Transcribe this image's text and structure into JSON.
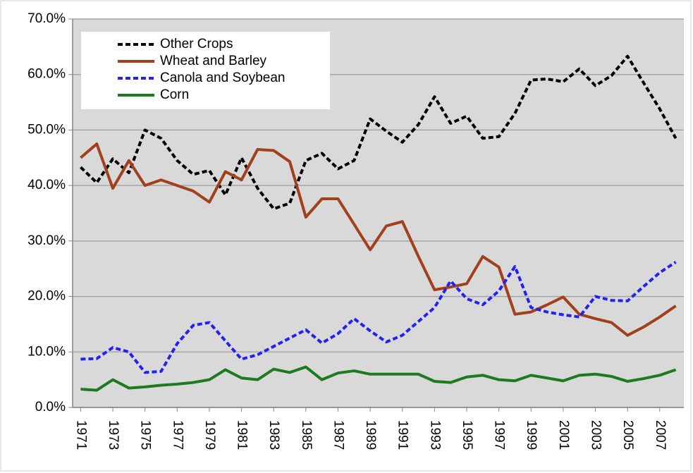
{
  "chart_data": {
    "type": "line",
    "x": [
      1971,
      1972,
      1973,
      1974,
      1975,
      1976,
      1977,
      1978,
      1979,
      1980,
      1981,
      1982,
      1983,
      1984,
      1985,
      1986,
      1987,
      1988,
      1989,
      1990,
      1991,
      1992,
      1993,
      1994,
      1995,
      1996,
      1997,
      1998,
      1999,
      2000,
      2001,
      2002,
      2003,
      2004,
      2005,
      2006,
      2007,
      2008
    ],
    "xlim": [
      1970.5,
      2008.5
    ],
    "xticks": [
      1971,
      1973,
      1975,
      1977,
      1979,
      1981,
      1983,
      1985,
      1987,
      1989,
      1991,
      1993,
      1995,
      1997,
      1999,
      2001,
      2003,
      2005,
      2007
    ],
    "ylim": [
      0,
      70
    ],
    "yticks": [
      {
        "value": 0,
        "label": "0.0%"
      },
      {
        "value": 10,
        "label": "10.0%"
      },
      {
        "value": 20,
        "label": "20.0%"
      },
      {
        "value": 30,
        "label": "30.0%"
      },
      {
        "value": 40,
        "label": "40.0%"
      },
      {
        "value": 50,
        "label": "50.0%"
      },
      {
        "value": 60,
        "label": "60.0%"
      },
      {
        "value": 70,
        "label": "70.0%"
      }
    ],
    "grid": true,
    "legend": "upper left",
    "series": [
      {
        "name": "Other Crops",
        "color": "#000000",
        "dashed": true,
        "values": [
          43.3,
          40.5,
          44.8,
          42.3,
          50.0,
          48.5,
          44.5,
          42.0,
          42.7,
          38.3,
          45.0,
          39.5,
          35.8,
          36.8,
          44.5,
          45.8,
          43.0,
          44.5,
          52.0,
          49.8,
          47.8,
          51.0,
          56.0,
          51.2,
          52.5,
          48.5,
          48.8,
          53.0,
          59.0,
          59.2,
          58.7,
          61.0,
          58.0,
          59.8,
          63.3,
          58.5,
          53.8,
          48.5
        ]
      },
      {
        "name": "Wheat and Barley",
        "color": "#a2401c",
        "dashed": false,
        "values": [
          45.0,
          47.5,
          39.5,
          44.5,
          40.0,
          41.0,
          40.0,
          39.0,
          37.0,
          42.5,
          41.0,
          46.5,
          46.3,
          44.3,
          34.3,
          37.6,
          37.6,
          33.0,
          28.4,
          32.7,
          33.5,
          27.2,
          21.2,
          21.7,
          22.3,
          27.2,
          25.3,
          16.8,
          17.2,
          18.5,
          19.9,
          16.8,
          16.0,
          15.3,
          13.0,
          14.5,
          16.3,
          18.3
        ]
      },
      {
        "name": "Canola and Soybean",
        "color": "#2222ee",
        "dashed": true,
        "values": [
          8.7,
          8.8,
          10.8,
          10.0,
          6.3,
          6.5,
          11.5,
          14.8,
          15.3,
          12.0,
          8.7,
          9.5,
          11.0,
          12.5,
          14.0,
          11.6,
          13.3,
          16.0,
          13.8,
          11.8,
          13.0,
          15.5,
          18.0,
          22.8,
          19.6,
          18.5,
          21.0,
          25.4,
          18.0,
          17.2,
          16.7,
          16.3,
          20.0,
          19.3,
          19.2,
          21.8,
          24.3,
          26.2
        ]
      },
      {
        "name": "Corn",
        "color": "#1e7a1e",
        "dashed": false,
        "values": [
          3.3,
          3.1,
          5.0,
          3.5,
          3.7,
          4.0,
          4.2,
          4.5,
          5.0,
          6.8,
          5.3,
          5.0,
          6.9,
          6.3,
          7.3,
          5.0,
          6.2,
          6.6,
          6.0,
          6.0,
          6.0,
          6.0,
          4.7,
          4.5,
          5.5,
          5.8,
          5.0,
          4.8,
          5.8,
          5.3,
          4.8,
          5.8,
          6.0,
          5.6,
          4.7,
          5.2,
          5.8,
          6.8
        ]
      }
    ]
  }
}
